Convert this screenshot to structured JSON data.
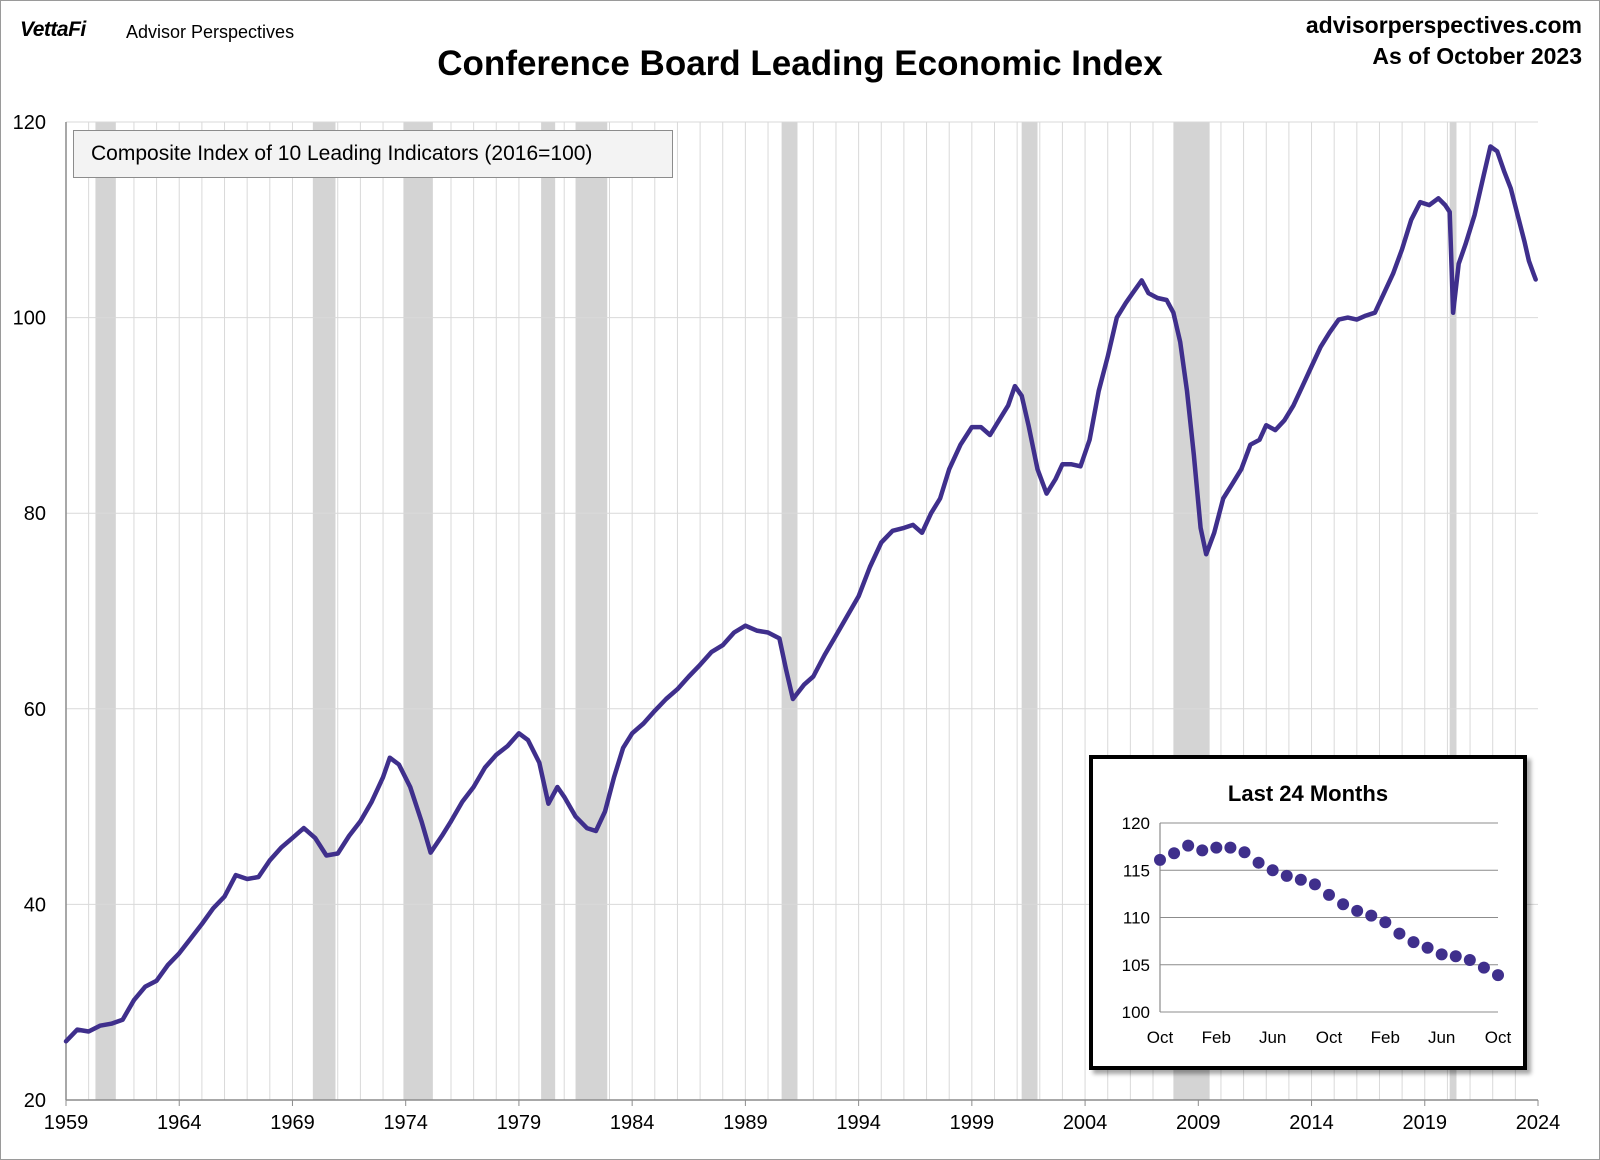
{
  "header": {
    "brand": "VettaFi",
    "brand_sub": "Advisor Perspectives",
    "site": "advisorperspectives.com",
    "as_of": "As of October 2023",
    "title": "Conference Board Leading Economic Index"
  },
  "colors": {
    "line": "#3f2f8c",
    "recession": "#d4d4d4",
    "grid": "#d9d9d9",
    "axis": "#8c8c8c"
  },
  "chart_data": [
    {
      "type": "line",
      "title": "Conference Board Leading Economic Index",
      "legend": "Composite Index of 10 Leading Indicators (2016=100)",
      "xlim": [
        1959,
        2024
      ],
      "ylim": [
        20,
        120
      ],
      "x_ticks": [
        1959,
        1964,
        1969,
        1974,
        1979,
        1984,
        1989,
        1994,
        1999,
        2004,
        2009,
        2014,
        2019,
        2024
      ],
      "y_ticks": [
        20,
        40,
        60,
        80,
        100,
        120
      ],
      "grid": true,
      "recessions": [
        [
          1960.3,
          1961.2
        ],
        [
          1969.9,
          1970.9
        ],
        [
          1973.9,
          1975.2
        ],
        [
          1980.0,
          1980.6
        ],
        [
          1981.5,
          1982.9
        ],
        [
          1990.6,
          1991.3
        ],
        [
          2001.2,
          2001.9
        ],
        [
          2007.9,
          2009.5
        ],
        [
          2020.1,
          2020.4
        ]
      ],
      "series": [
        {
          "points": [
            [
              1959.0,
              26.0
            ],
            [
              1959.5,
              27.2
            ],
            [
              1960.0,
              27.0
            ],
            [
              1960.5,
              27.6
            ],
            [
              1961.0,
              27.8
            ],
            [
              1961.5,
              28.2
            ],
            [
              1962.0,
              30.2
            ],
            [
              1962.5,
              31.6
            ],
            [
              1963.0,
              32.2
            ],
            [
              1963.5,
              33.8
            ],
            [
              1964.0,
              35.0
            ],
            [
              1964.5,
              36.5
            ],
            [
              1965.0,
              38.0
            ],
            [
              1965.5,
              39.6
            ],
            [
              1966.0,
              40.8
            ],
            [
              1966.5,
              43.0
            ],
            [
              1967.0,
              42.6
            ],
            [
              1967.5,
              42.8
            ],
            [
              1968.0,
              44.5
            ],
            [
              1968.5,
              45.8
            ],
            [
              1969.0,
              46.8
            ],
            [
              1969.5,
              47.8
            ],
            [
              1970.0,
              46.8
            ],
            [
              1970.5,
              45.0
            ],
            [
              1971.0,
              45.2
            ],
            [
              1971.5,
              47.0
            ],
            [
              1972.0,
              48.5
            ],
            [
              1972.5,
              50.5
            ],
            [
              1973.0,
              53.0
            ],
            [
              1973.3,
              55.0
            ],
            [
              1973.7,
              54.3
            ],
            [
              1974.2,
              52.0
            ],
            [
              1974.7,
              48.5
            ],
            [
              1975.1,
              45.3
            ],
            [
              1975.6,
              47.0
            ],
            [
              1976.0,
              48.5
            ],
            [
              1976.5,
              50.5
            ],
            [
              1977.0,
              52.0
            ],
            [
              1977.5,
              54.0
            ],
            [
              1978.0,
              55.3
            ],
            [
              1978.5,
              56.2
            ],
            [
              1979.0,
              57.5
            ],
            [
              1979.4,
              56.8
            ],
            [
              1979.9,
              54.5
            ],
            [
              1980.3,
              50.3
            ],
            [
              1980.7,
              52.0
            ],
            [
              1981.0,
              51.0
            ],
            [
              1981.5,
              49.0
            ],
            [
              1982.0,
              47.8
            ],
            [
              1982.4,
              47.5
            ],
            [
              1982.8,
              49.5
            ],
            [
              1983.2,
              53.0
            ],
            [
              1983.6,
              56.0
            ],
            [
              1984.0,
              57.5
            ],
            [
              1984.5,
              58.5
            ],
            [
              1985.0,
              59.8
            ],
            [
              1985.5,
              61.0
            ],
            [
              1986.0,
              62.0
            ],
            [
              1986.5,
              63.3
            ],
            [
              1987.0,
              64.5
            ],
            [
              1987.5,
              65.8
            ],
            [
              1988.0,
              66.5
            ],
            [
              1988.5,
              67.8
            ],
            [
              1989.0,
              68.5
            ],
            [
              1989.5,
              68.0
            ],
            [
              1990.0,
              67.8
            ],
            [
              1990.5,
              67.2
            ],
            [
              1990.8,
              64.0
            ],
            [
              1991.1,
              61.0
            ],
            [
              1991.6,
              62.5
            ],
            [
              1992.0,
              63.3
            ],
            [
              1992.5,
              65.5
            ],
            [
              1993.0,
              67.5
            ],
            [
              1993.5,
              69.5
            ],
            [
              1994.0,
              71.5
            ],
            [
              1994.5,
              74.5
            ],
            [
              1995.0,
              77.0
            ],
            [
              1995.5,
              78.2
            ],
            [
              1996.0,
              78.5
            ],
            [
              1996.4,
              78.8
            ],
            [
              1996.8,
              78.0
            ],
            [
              1997.2,
              80.0
            ],
            [
              1997.6,
              81.5
            ],
            [
              1998.0,
              84.5
            ],
            [
              1998.5,
              87.0
            ],
            [
              1999.0,
              88.8
            ],
            [
              1999.4,
              88.8
            ],
            [
              1999.8,
              88.0
            ],
            [
              2000.2,
              89.5
            ],
            [
              2000.6,
              91.0
            ],
            [
              2000.9,
              93.0
            ],
            [
              2001.2,
              92.0
            ],
            [
              2001.5,
              89.0
            ],
            [
              2001.9,
              84.5
            ],
            [
              2002.3,
              82.0
            ],
            [
              2002.7,
              83.5
            ],
            [
              2003.0,
              85.0
            ],
            [
              2003.4,
              85.0
            ],
            [
              2003.8,
              84.8
            ],
            [
              2004.2,
              87.5
            ],
            [
              2004.6,
              92.5
            ],
            [
              2005.0,
              96.0
            ],
            [
              2005.4,
              100.0
            ],
            [
              2005.8,
              101.5
            ],
            [
              2006.1,
              102.5
            ],
            [
              2006.5,
              103.8
            ],
            [
              2006.8,
              102.5
            ],
            [
              2007.2,
              102.0
            ],
            [
              2007.6,
              101.8
            ],
            [
              2007.9,
              100.5
            ],
            [
              2008.2,
              97.5
            ],
            [
              2008.5,
              92.5
            ],
            [
              2008.8,
              86.0
            ],
            [
              2009.1,
              78.5
            ],
            [
              2009.35,
              75.8
            ],
            [
              2009.7,
              78.0
            ],
            [
              2010.1,
              81.5
            ],
            [
              2010.5,
              83.0
            ],
            [
              2010.9,
              84.5
            ],
            [
              2011.3,
              87.0
            ],
            [
              2011.7,
              87.5
            ],
            [
              2012.0,
              89.0
            ],
            [
              2012.4,
              88.5
            ],
            [
              2012.8,
              89.5
            ],
            [
              2013.2,
              91.0
            ],
            [
              2013.6,
              93.0
            ],
            [
              2014.0,
              95.0
            ],
            [
              2014.4,
              97.0
            ],
            [
              2014.8,
              98.5
            ],
            [
              2015.2,
              99.8
            ],
            [
              2015.6,
              100.0
            ],
            [
              2016.0,
              99.8
            ],
            [
              2016.4,
              100.2
            ],
            [
              2016.8,
              100.5
            ],
            [
              2017.2,
              102.5
            ],
            [
              2017.6,
              104.5
            ],
            [
              2018.0,
              107.0
            ],
            [
              2018.4,
              110.0
            ],
            [
              2018.8,
              111.8
            ],
            [
              2019.2,
              111.5
            ],
            [
              2019.6,
              112.2
            ],
            [
              2019.9,
              111.5
            ],
            [
              2020.1,
              110.8
            ],
            [
              2020.25,
              100.5
            ],
            [
              2020.5,
              105.5
            ],
            [
              2020.8,
              107.5
            ],
            [
              2021.2,
              110.5
            ],
            [
              2021.6,
              114.5
            ],
            [
              2021.9,
              117.5
            ],
            [
              2022.2,
              117.0
            ],
            [
              2022.5,
              115.0
            ],
            [
              2022.8,
              113.2
            ],
            [
              2023.1,
              110.5
            ],
            [
              2023.4,
              107.8
            ],
            [
              2023.6,
              105.8
            ],
            [
              2023.8,
              104.5
            ],
            [
              2023.9,
              103.9
            ]
          ]
        }
      ]
    },
    {
      "type": "scatter",
      "title": "Last 24 Months",
      "ylim": [
        100,
        120
      ],
      "y_ticks": [
        100,
        105,
        110,
        115,
        120
      ],
      "x_tick_labels": [
        "Oct",
        "Feb",
        "Jun",
        "Oct",
        "Feb",
        "Jun",
        "Oct"
      ],
      "grid": true,
      "values": [
        116.1,
        116.8,
        117.6,
        117.1,
        117.4,
        117.4,
        116.9,
        115.8,
        115.0,
        114.4,
        114.0,
        113.5,
        112.4,
        111.4,
        110.7,
        110.2,
        109.5,
        108.3,
        107.4,
        106.8,
        106.1,
        105.9,
        105.5,
        104.7,
        103.9
      ]
    }
  ]
}
